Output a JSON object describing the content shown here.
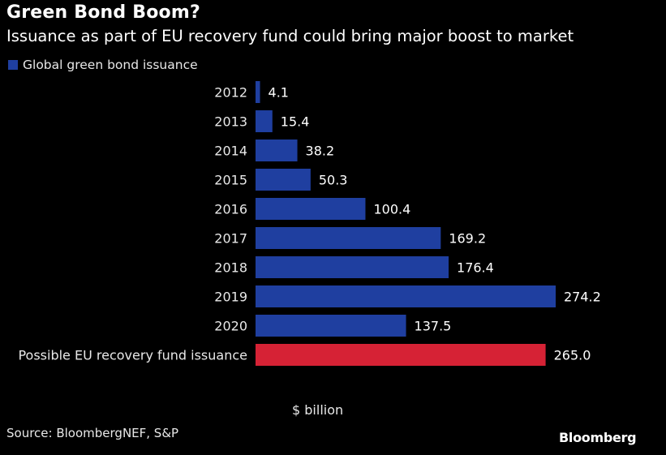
{
  "chart_data": {
    "type": "bar",
    "orientation": "horizontal",
    "title": "Green Bond Boom?",
    "subtitle": "Issuance as part of EU recovery fund could bring major boost to market",
    "legend": [
      {
        "label": "Global green bond issuance",
        "color": "#1f3fa0"
      }
    ],
    "categories": [
      "2012",
      "2013",
      "2014",
      "2015",
      "2016",
      "2017",
      "2018",
      "2019",
      "2020",
      "Possible EU recovery fund issuance"
    ],
    "values": [
      4.1,
      15.4,
      38.2,
      50.3,
      100.4,
      169.2,
      176.4,
      274.2,
      137.5,
      265.0
    ],
    "value_labels": [
      "4.1",
      "15.4",
      "38.2",
      "50.3",
      "100.4",
      "169.2",
      "176.4",
      "274.2",
      "137.5",
      "265.0"
    ],
    "colors": [
      "#1f3fa0",
      "#1f3fa0",
      "#1f3fa0",
      "#1f3fa0",
      "#1f3fa0",
      "#1f3fa0",
      "#1f3fa0",
      "#1f3fa0",
      "#1f3fa0",
      "#d62235"
    ],
    "xlabel": "$ billion",
    "xlim": [
      0,
      274.2
    ]
  },
  "source": "Source: BloombergNEF, S&P",
  "brand": "Bloomberg"
}
